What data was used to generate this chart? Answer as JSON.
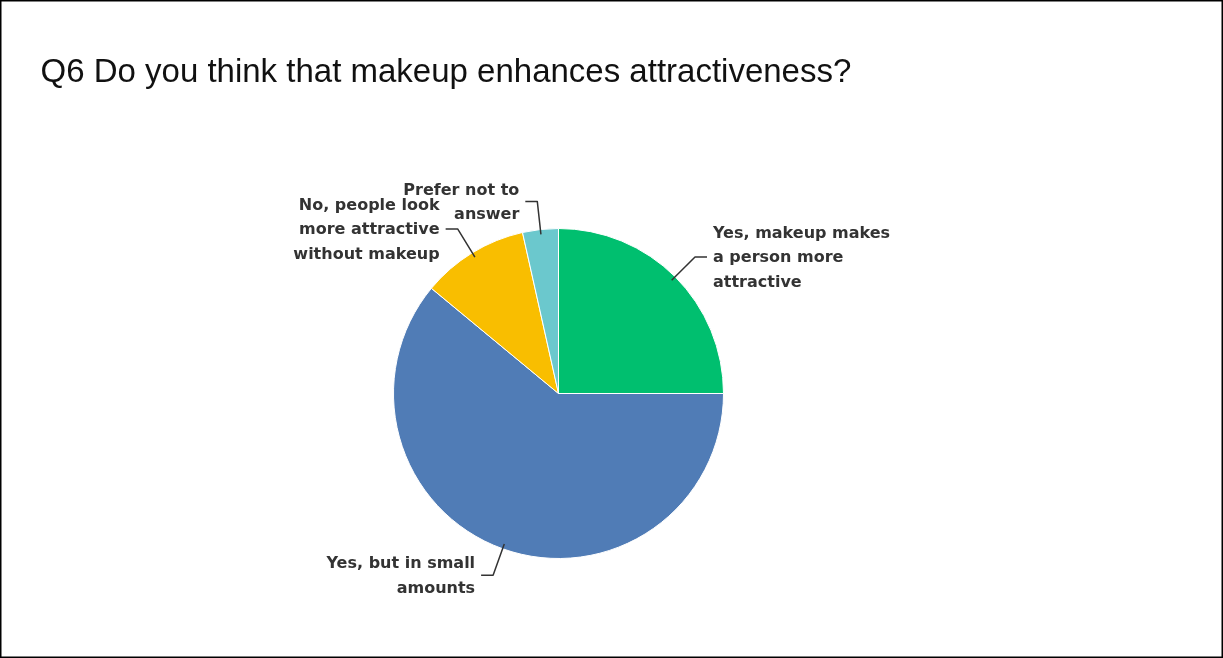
{
  "chart_data": {
    "type": "pie",
    "title": "Q6 Do you think that makeup enhances attractiveness?",
    "categories": [
      "Yes, makeup makes a person more attractive",
      "Yes, but in small amounts",
      "No, people look more attractive without makeup",
      "Prefer not to answer"
    ],
    "values": [
      25,
      61,
      10.5,
      3.5
    ],
    "colors": [
      "#00bf6f",
      "#507cb6",
      "#f9be00",
      "#6bc8cd"
    ]
  }
}
